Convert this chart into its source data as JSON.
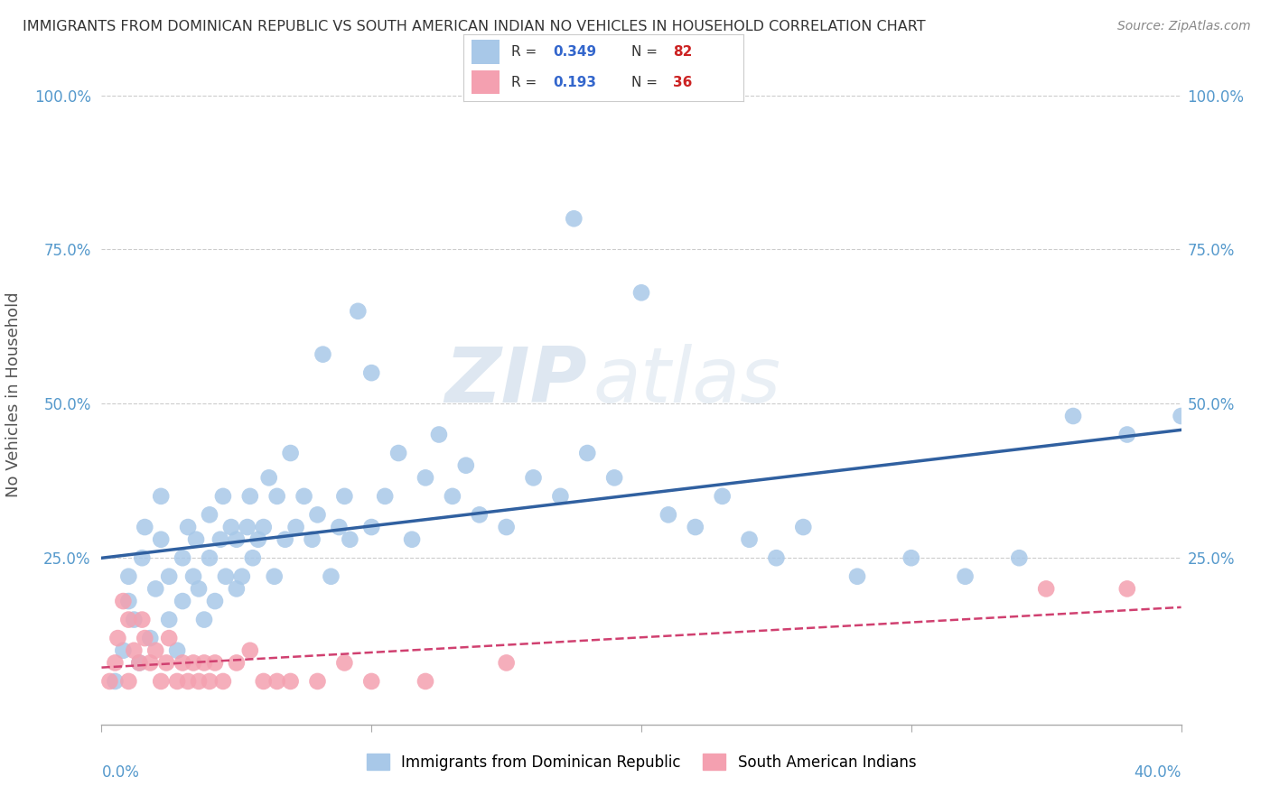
{
  "title": "IMMIGRANTS FROM DOMINICAN REPUBLIC VS SOUTH AMERICAN INDIAN NO VEHICLES IN HOUSEHOLD CORRELATION CHART",
  "source": "Source: ZipAtlas.com",
  "ylabel": "No Vehicles in Household",
  "ytick_labels": [
    "",
    "25.0%",
    "50.0%",
    "75.0%",
    "100.0%"
  ],
  "ytick_values": [
    0.0,
    0.25,
    0.5,
    0.75,
    1.0
  ],
  "xlim": [
    0.0,
    0.4
  ],
  "ylim": [
    -0.02,
    1.05
  ],
  "legend1_R": "0.349",
  "legend1_N": "82",
  "legend2_R": "0.193",
  "legend2_N": "36",
  "blue_color": "#a8c8e8",
  "pink_color": "#f4a0b0",
  "blue_line_color": "#3060a0",
  "pink_line_color": "#d04070",
  "watermark_color": "#c8d8e8",
  "blue_scatter_x": [
    0.005,
    0.008,
    0.01,
    0.01,
    0.012,
    0.014,
    0.015,
    0.016,
    0.018,
    0.02,
    0.022,
    0.022,
    0.025,
    0.025,
    0.028,
    0.03,
    0.03,
    0.032,
    0.034,
    0.035,
    0.036,
    0.038,
    0.04,
    0.04,
    0.042,
    0.044,
    0.045,
    0.046,
    0.048,
    0.05,
    0.05,
    0.052,
    0.054,
    0.055,
    0.056,
    0.058,
    0.06,
    0.062,
    0.064,
    0.065,
    0.068,
    0.07,
    0.072,
    0.075,
    0.078,
    0.08,
    0.082,
    0.085,
    0.088,
    0.09,
    0.092,
    0.095,
    0.1,
    0.105,
    0.11,
    0.115,
    0.12,
    0.125,
    0.13,
    0.135,
    0.14,
    0.15,
    0.16,
    0.17,
    0.175,
    0.18,
    0.19,
    0.2,
    0.21,
    0.22,
    0.23,
    0.24,
    0.25,
    0.26,
    0.28,
    0.3,
    0.32,
    0.34,
    0.36,
    0.38,
    0.4,
    0.1
  ],
  "blue_scatter_y": [
    0.05,
    0.1,
    0.18,
    0.22,
    0.15,
    0.08,
    0.25,
    0.3,
    0.12,
    0.2,
    0.28,
    0.35,
    0.15,
    0.22,
    0.1,
    0.18,
    0.25,
    0.3,
    0.22,
    0.28,
    0.2,
    0.15,
    0.25,
    0.32,
    0.18,
    0.28,
    0.35,
    0.22,
    0.3,
    0.2,
    0.28,
    0.22,
    0.3,
    0.35,
    0.25,
    0.28,
    0.3,
    0.38,
    0.22,
    0.35,
    0.28,
    0.42,
    0.3,
    0.35,
    0.28,
    0.32,
    0.58,
    0.22,
    0.3,
    0.35,
    0.28,
    0.65,
    0.3,
    0.35,
    0.42,
    0.28,
    0.38,
    0.45,
    0.35,
    0.4,
    0.32,
    0.3,
    0.38,
    0.35,
    0.8,
    0.42,
    0.38,
    0.68,
    0.32,
    0.3,
    0.35,
    0.28,
    0.25,
    0.3,
    0.22,
    0.25,
    0.22,
    0.25,
    0.48,
    0.45,
    0.48,
    0.55
  ],
  "pink_scatter_x": [
    0.003,
    0.005,
    0.006,
    0.008,
    0.01,
    0.01,
    0.012,
    0.014,
    0.015,
    0.016,
    0.018,
    0.02,
    0.022,
    0.024,
    0.025,
    0.028,
    0.03,
    0.032,
    0.034,
    0.036,
    0.038,
    0.04,
    0.042,
    0.045,
    0.05,
    0.055,
    0.06,
    0.065,
    0.07,
    0.08,
    0.09,
    0.1,
    0.12,
    0.15,
    0.35,
    0.38
  ],
  "pink_scatter_y": [
    0.05,
    0.08,
    0.12,
    0.18,
    0.05,
    0.15,
    0.1,
    0.08,
    0.15,
    0.12,
    0.08,
    0.1,
    0.05,
    0.08,
    0.12,
    0.05,
    0.08,
    0.05,
    0.08,
    0.05,
    0.08,
    0.05,
    0.08,
    0.05,
    0.08,
    0.1,
    0.05,
    0.05,
    0.05,
    0.05,
    0.08,
    0.05,
    0.05,
    0.08,
    0.2,
    0.2
  ]
}
